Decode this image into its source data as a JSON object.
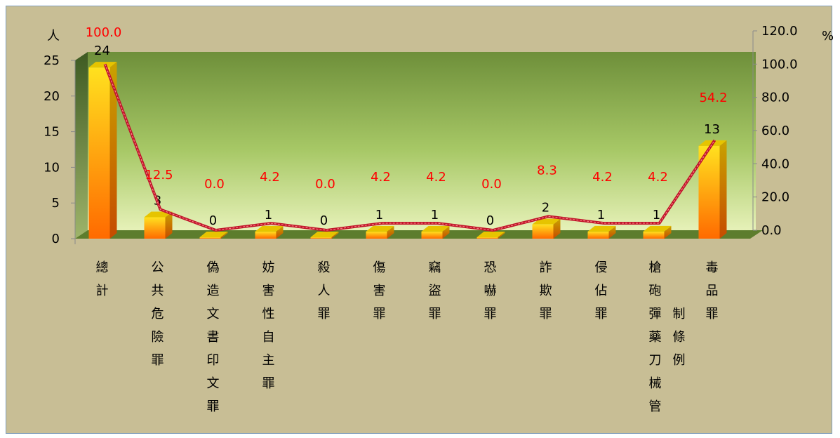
{
  "chart_data": {
    "type": "bar",
    "left_axis_unit": "人",
    "right_axis_unit": "%",
    "left_axis": {
      "min": 0,
      "max": 25,
      "ticks": [
        "0",
        "5",
        "10",
        "15",
        "20",
        "25"
      ]
    },
    "right_axis": {
      "min": 0,
      "max": 120,
      "ticks": [
        "0.0",
        "20.0",
        "40.0",
        "60.0",
        "80.0",
        "100.0",
        "120.0"
      ]
    },
    "categories": [
      "總計",
      "公共危險罪",
      "偽造文書印文罪",
      "妨害性自主罪",
      "殺人罪",
      "傷害罪",
      "竊盜罪",
      "恐嚇罪",
      "詐欺罪",
      "侵佔罪",
      "槍砲彈藥刀械管制條例",
      "毒品罪"
    ],
    "category_columns": [
      [
        "總計"
      ],
      [
        "公共危險罪"
      ],
      [
        "偽造文書印文罪"
      ],
      [
        "妨害性自主罪"
      ],
      [
        "殺人罪"
      ],
      [
        "傷害罪"
      ],
      [
        "竊盜罪"
      ],
      [
        "恐嚇罪"
      ],
      [
        "詐欺罪"
      ],
      [
        "侵佔罪"
      ],
      [
        "槍砲彈藥刀械管",
        "制條例"
      ],
      [
        "毒品罪"
      ]
    ],
    "series": [
      {
        "type": "bar",
        "axis": "left",
        "values": [
          24,
          3,
          0,
          1,
          0,
          1,
          1,
          0,
          2,
          1,
          1,
          13
        ],
        "labels": [
          "24",
          "3",
          "0",
          "1",
          "0",
          "1",
          "1",
          "0",
          "2",
          "1",
          "1",
          "13"
        ]
      },
      {
        "type": "line",
        "axis": "right",
        "values": [
          100.0,
          12.5,
          0.0,
          4.2,
          0.0,
          4.2,
          4.2,
          0.0,
          8.3,
          4.2,
          4.2,
          54.2
        ],
        "labels": [
          "100.0",
          "12.5",
          "0.0",
          "4.2",
          "0.0",
          "4.2",
          "4.2",
          "0.0",
          "8.3",
          "4.2",
          "4.2",
          "54.2"
        ]
      }
    ],
    "grid": false,
    "legend": "none"
  },
  "colors": {
    "background": "#c8be95",
    "bar_top": "#ffd21f",
    "bar_bottom": "#ff6a00",
    "line": "#c0152a",
    "pct_text": "#ff0000"
  }
}
